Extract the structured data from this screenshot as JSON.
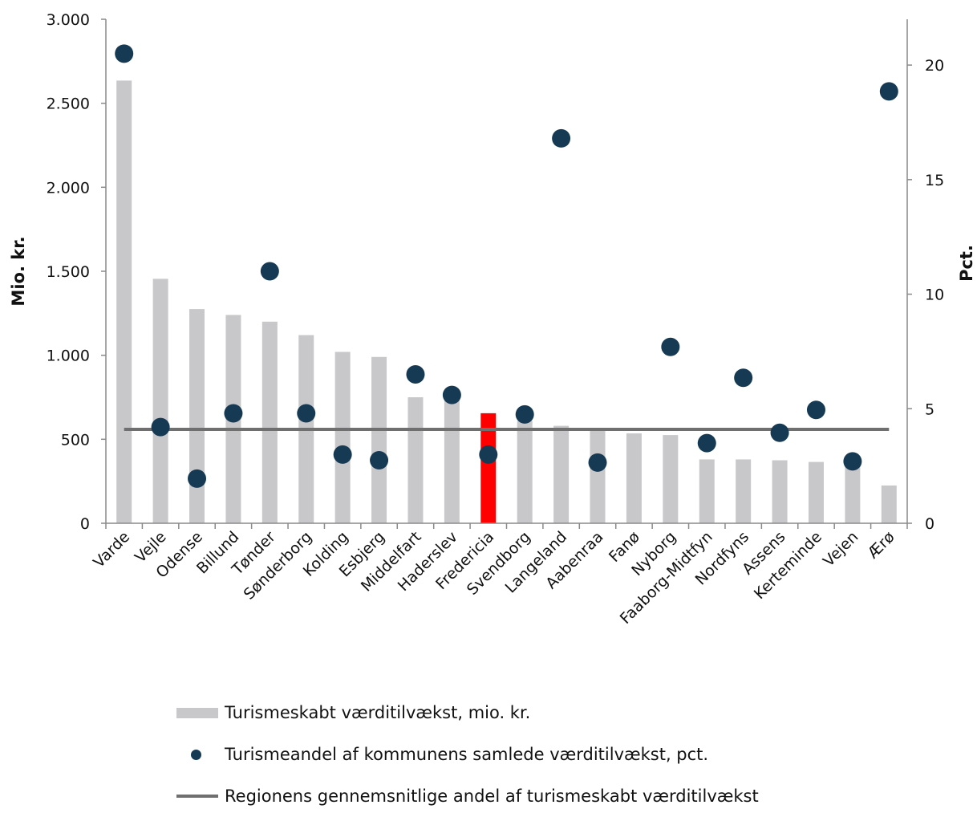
{
  "chart_data": {
    "type": "bar",
    "categories": [
      "Varde",
      "Vejle",
      "Odense",
      "Billund",
      "Tønder",
      "Sønderborg",
      "Kolding",
      "Esbjerg",
      "Middelfart",
      "Haderslev",
      "Fredericia",
      "Svendborg",
      "Langeland",
      "Aabenraa",
      "Fanø",
      "Nyborg",
      "Faaborg-Midtfyn",
      "Nordfyns",
      "Assens",
      "Kerteminde",
      "Vejen",
      "Ærø"
    ],
    "series": [
      {
        "name": "Turismeskabt værditilvækst, mio. kr.",
        "axis": "left",
        "type": "bar",
        "values": [
          2635,
          1455,
          1275,
          1240,
          1200,
          1120,
          1020,
          990,
          750,
          740,
          655,
          610,
          580,
          560,
          535,
          525,
          380,
          380,
          375,
          365,
          345,
          225
        ],
        "color": "#c8c8cb",
        "highlight_category": "Fredericia",
        "highlight_color": "#ff0000"
      },
      {
        "name": "Turismeandel af kommunens samlede værditilvækst, pct.",
        "axis": "right",
        "type": "scatter",
        "values": [
          20.5,
          4.2,
          1.95,
          4.8,
          11.0,
          4.8,
          3.0,
          2.75,
          6.5,
          5.6,
          3.0,
          4.75,
          16.8,
          2.65,
          null,
          7.7,
          3.5,
          6.35,
          3.95,
          4.95,
          2.7,
          18.85
        ],
        "color": "#173a54"
      },
      {
        "name": "Regionens gennemsnitlige andel af turismeskabt værditilvækst",
        "axis": "right",
        "type": "line",
        "value": 4.1,
        "color": "#6f6f6f"
      }
    ],
    "left_axis": {
      "label": "Mio. kr.",
      "ylim": [
        0,
        3000
      ],
      "ticks": [
        0,
        500,
        1000,
        1500,
        2000,
        2500,
        3000
      ],
      "tick_labels": [
        "0",
        "500",
        "1.000",
        "1.500",
        "2.000",
        "2.500",
        "3.000"
      ]
    },
    "right_axis": {
      "label": "Pct.",
      "ylim": [
        0,
        22
      ],
      "ticks": [
        0,
        5,
        10,
        15,
        20
      ],
      "tick_labels": [
        "0",
        "5",
        "10",
        "15",
        "20"
      ]
    },
    "grid": false,
    "legend_position": "bottom"
  }
}
